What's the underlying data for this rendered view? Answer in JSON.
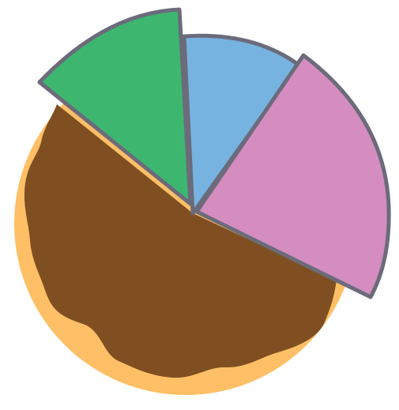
{
  "illustration": {
    "name": "pie-chart-donut-icon",
    "colors": {
      "background": "#ffffff",
      "donut_dough": "#FFBF66",
      "chocolate_glaze": "#7F4F21",
      "slice_green": "#3DB770",
      "slice_blue": "#76B3E1",
      "slice_pink": "#D58DBF",
      "outline": "#6B6B7B"
    }
  }
}
